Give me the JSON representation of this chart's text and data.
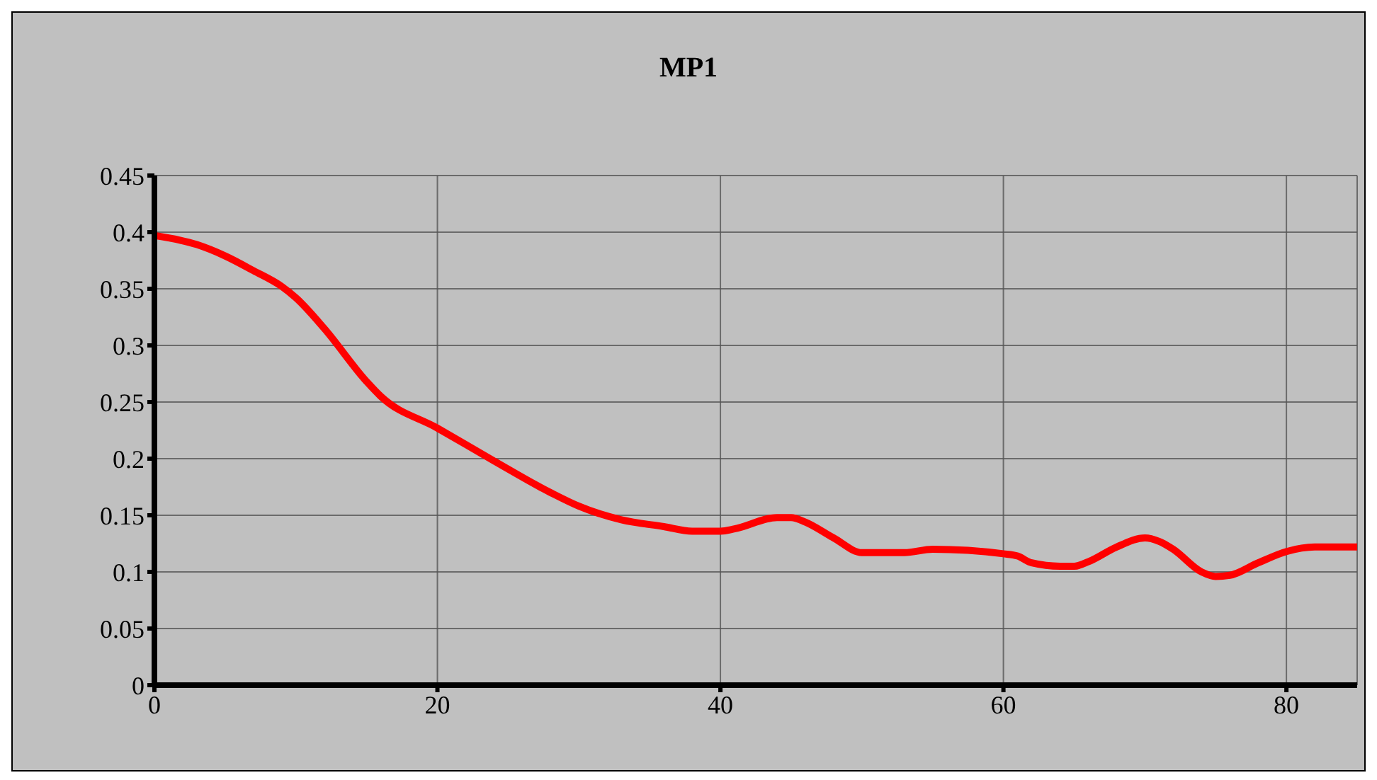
{
  "chart_data": {
    "type": "line",
    "title": "MP1",
    "x": [
      0,
      3,
      5,
      7,
      9,
      10,
      12,
      15,
      16,
      20,
      24,
      28,
      30,
      33,
      36,
      38,
      40,
      41,
      44,
      45,
      46,
      48,
      50,
      53,
      55,
      60,
      61,
      62,
      64,
      65,
      66,
      68,
      70,
      71,
      72,
      74,
      75,
      76,
      78,
      80,
      82,
      85
    ],
    "series": [
      {
        "color": "#ff0000",
        "values": [
          0.397,
          0.389,
          0.379,
          0.366,
          0.352,
          0.342,
          0.315,
          0.268,
          0.255,
          0.227,
          0.198,
          0.17,
          0.158,
          0.146,
          0.14,
          0.136,
          0.136,
          0.138,
          0.148,
          0.148,
          0.144,
          0.13,
          0.117,
          0.117,
          0.12,
          0.116,
          0.114,
          0.108,
          0.105,
          0.105,
          0.109,
          0.122,
          0.13,
          0.127,
          0.12,
          0.1,
          0.096,
          0.097,
          0.108,
          0.118,
          0.122,
          0.122
        ]
      }
    ],
    "xlim": [
      0,
      85
    ],
    "xticks": [
      0,
      20,
      40,
      60,
      80
    ],
    "ylim": [
      0,
      0.45
    ],
    "yticks": [
      0,
      0.05,
      0.1,
      0.15,
      0.2,
      0.25,
      0.3,
      0.35,
      0.4,
      0.45
    ],
    "grid": true,
    "marker": "none",
    "line_style": "solid"
  }
}
